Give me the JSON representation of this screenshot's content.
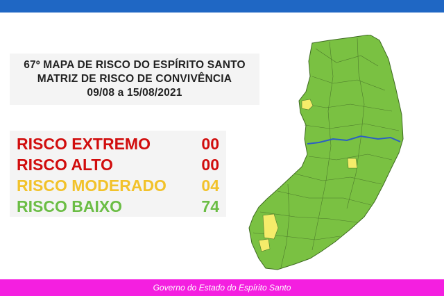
{
  "header": {
    "bar_color": "#1f67c4",
    "title_lines": [
      "67º MAPA DE RISCO DO ESPÍRITO SANTO",
      "MATRIZ DE RISCO DE CONVIVÊNCIA",
      "09/08 a 15/08/2021"
    ]
  },
  "risk_levels": [
    {
      "label": "RISCO EXTREMO",
      "count": "00",
      "color": "#d10d0d"
    },
    {
      "label": "RISCO ALTO",
      "count": "00",
      "color": "#d10d0d"
    },
    {
      "label": "RISCO MODERADO",
      "count": "04",
      "color": "#f2c22a"
    },
    {
      "label": "RISCO BAIXO",
      "count": "74",
      "color": "#6bbd45"
    }
  ],
  "map": {
    "region": "Espírito Santo",
    "low_risk_color": "#7ac142",
    "moderate_risk_color": "#f5ec6a",
    "river_color": "#2b5fc4"
  },
  "footer": {
    "text": "Governo do Estado do Espírito Santo",
    "bar_color": "#f41fe0"
  }
}
